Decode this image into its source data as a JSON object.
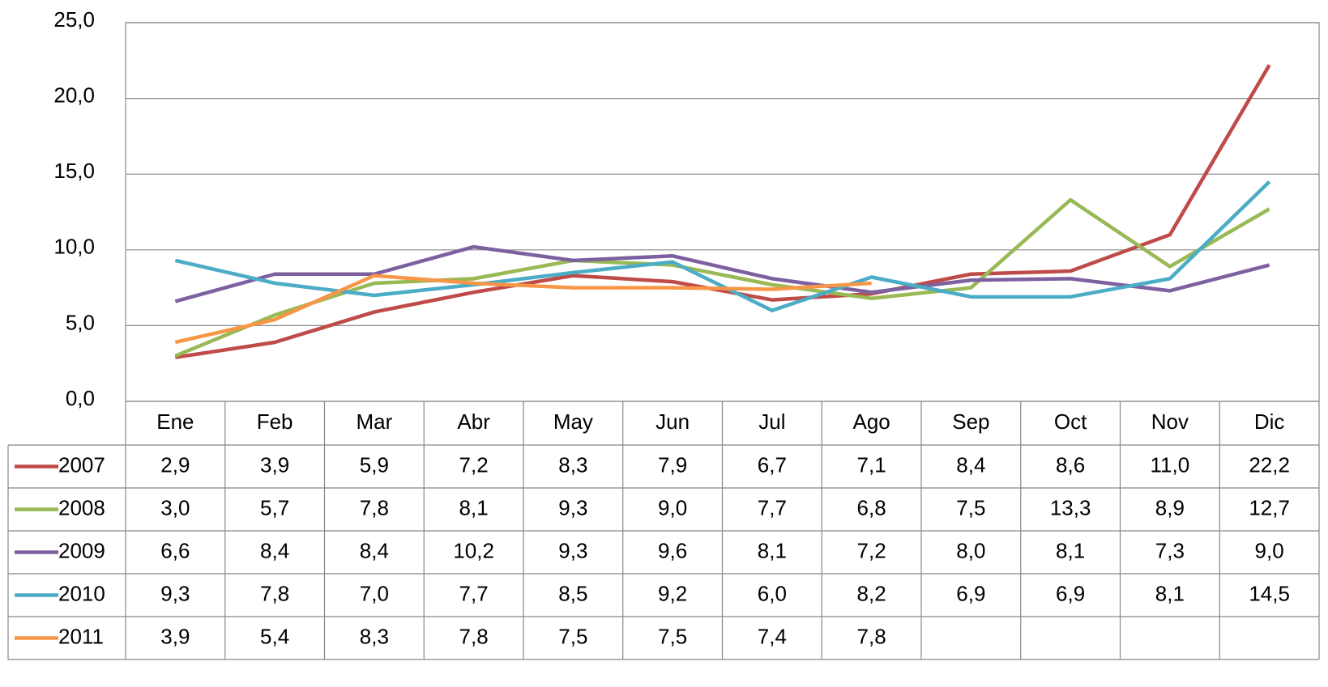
{
  "chart_data": {
    "type": "line",
    "categories": [
      "Ene",
      "Feb",
      "Mar",
      "Abr",
      "May",
      "Jun",
      "Jul",
      "Ago",
      "Sep",
      "Oct",
      "Nov",
      "Dic"
    ],
    "ylim": [
      0,
      25
    ],
    "yticks": [
      {
        "value": 0,
        "label": "0,0"
      },
      {
        "value": 5,
        "label": "5,0"
      },
      {
        "value": 10,
        "label": "10,0"
      },
      {
        "value": 15,
        "label": "15,0"
      },
      {
        "value": 20,
        "label": "20,0"
      },
      {
        "value": 25,
        "label": "25,0"
      }
    ],
    "grid": true,
    "series": [
      {
        "name": "2007",
        "color": "#be4b48",
        "values": [
          2.9,
          3.9,
          5.9,
          7.2,
          8.3,
          7.9,
          6.7,
          7.1,
          8.4,
          8.6,
          11.0,
          22.2
        ],
        "value_labels": [
          "2,9",
          "3,9",
          "5,9",
          "7,2",
          "8,3",
          "7,9",
          "6,7",
          "7,1",
          "8,4",
          "8,6",
          "11,0",
          "22,2"
        ]
      },
      {
        "name": "2008",
        "color": "#98b954",
        "values": [
          3.0,
          5.7,
          7.8,
          8.1,
          9.3,
          9.0,
          7.7,
          6.8,
          7.5,
          13.3,
          8.9,
          12.7
        ],
        "value_labels": [
          "3,0",
          "5,7",
          "7,8",
          "8,1",
          "9,3",
          "9,0",
          "7,7",
          "6,8",
          "7,5",
          "13,3",
          "8,9",
          "12,7"
        ]
      },
      {
        "name": "2009",
        "color": "#7d60a0",
        "values": [
          6.6,
          8.4,
          8.4,
          10.2,
          9.3,
          9.6,
          8.1,
          7.2,
          8.0,
          8.1,
          7.3,
          9.0
        ],
        "value_labels": [
          "6,6",
          "8,4",
          "8,4",
          "10,2",
          "9,3",
          "9,6",
          "8,1",
          "7,2",
          "8,0",
          "8,1",
          "7,3",
          "9,0"
        ]
      },
      {
        "name": "2010",
        "color": "#4bacc6",
        "values": [
          9.3,
          7.8,
          7.0,
          7.7,
          8.5,
          9.2,
          6.0,
          8.2,
          6.9,
          6.9,
          8.1,
          14.5
        ],
        "value_labels": [
          "9,3",
          "7,8",
          "7,0",
          "7,7",
          "8,5",
          "9,2",
          "6,0",
          "8,2",
          "6,9",
          "6,9",
          "8,1",
          "14,5"
        ]
      },
      {
        "name": "2011",
        "color": "#f79646",
        "values": [
          3.9,
          5.4,
          8.3,
          7.8,
          7.5,
          7.5,
          7.4,
          7.8,
          null,
          null,
          null,
          null
        ],
        "value_labels": [
          "3,9",
          "5,4",
          "8,3",
          "7,8",
          "7,5",
          "7,5",
          "7,4",
          "7,8",
          null,
          null,
          null,
          null
        ]
      }
    ]
  }
}
